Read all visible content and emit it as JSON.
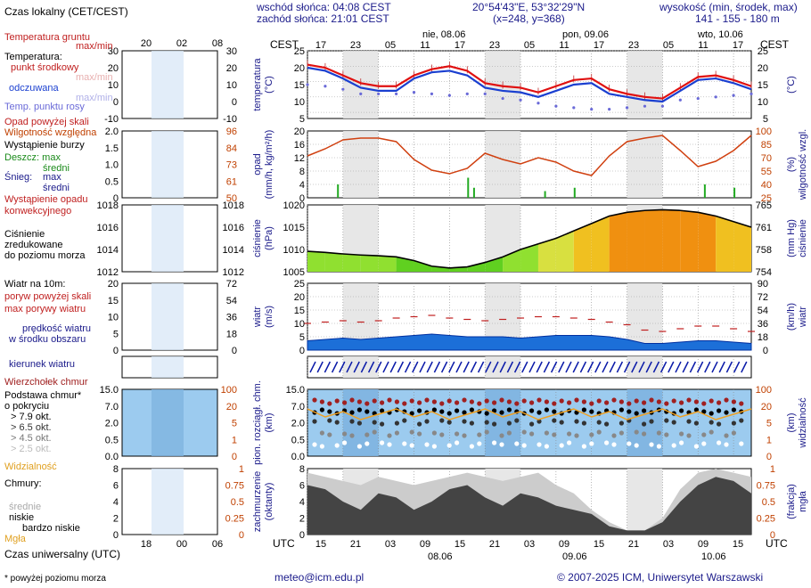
{
  "header": {
    "sunrise": "wschód słońca: 04:08 CEST",
    "sunset": "zachód słońca: 21:01 CEST",
    "coords": "20°54'43\"E, 53°32'29\"N",
    "grid": "(x=248, y=368)",
    "elev_title": "wysokość (min, środek, max)",
    "elev_values": "141 - 155 - 180 m",
    "local_time": "Czas lokalny (CET/CEST)",
    "cest_left": "CEST",
    "cest_right": "CEST",
    "utc_left": "UTC",
    "utc_right": "UTC",
    "utc_axis": "Czas uniwersalny (UTC)",
    "footnote": "* powyżej poziomu morza",
    "email": "meteo@icm.edu.pl",
    "copyright": "© 2007-2025 ICM, Uniwersytet Warszawski"
  },
  "time_axis": {
    "local_hours": [
      "17",
      "23",
      "05",
      "11",
      "17",
      "23",
      "05",
      "11",
      "17",
      "23",
      "05",
      "11",
      "17"
    ],
    "utc_hours": [
      "15",
      "21",
      "03",
      "09",
      "15",
      "21",
      "03",
      "09",
      "15",
      "21",
      "03",
      "09",
      "15"
    ],
    "days_top": [
      "nie, 08.06",
      "pon, 09.06",
      "wto, 10.06"
    ],
    "days_bottom": [
      "08.06",
      "09.06",
      "10.06"
    ],
    "legend_top": [
      "20",
      "02",
      "08"
    ],
    "legend_bottom": [
      "18",
      "00",
      "06"
    ]
  },
  "legend": {
    "ground_temp": "Temperatura gruntu",
    "ground_temp_sub": "max/min",
    "temp_title": "Temperatura:",
    "temp_mid": "punkt środkowy",
    "temp_maxmin": "max/min",
    "temp_felt": "odczuwana",
    "temp_felt_maxmin": "max/min",
    "dew": "Temp. punktu rosy",
    "precip_above": "Opad powyżej skali",
    "humidity": "Wilgotność względna",
    "storm": "Wystąpienie burzy",
    "rain": "Deszcz: max",
    "rain_mid": "średni",
    "snow": "Śnieg:",
    "snow_max": "max",
    "snow_mid": "średni",
    "conv1": "Wystąpienie opadu",
    "conv2": "konwekcyjnego",
    "press1": "Ciśnienie",
    "press2": "zredukowane",
    "press3": "do poziomu morza",
    "wind_title": "Wiatr na 10m:",
    "gust_above": "poryw powyżej skali",
    "gust_max": "max porywy wiatru",
    "wind_avg1": "prędkość wiatru",
    "wind_avg2": "w środku obszaru",
    "wind_dir": "kierunek wiatru",
    "cloud_top": "Wierzchołek chmur",
    "cloud_base1": "Podstawa chmur*",
    "cloud_base2": "o pokryciu",
    "okt": [
      "> 7.9 okt.",
      "> 6.5 okt.",
      "> 4.5 okt.",
      "> 2.5 okt.",
      "> 0.1 okt."
    ],
    "visibility": "Widzialność",
    "clouds": "Chmury:",
    "cl_high": "wysokie",
    "cl_mid": "średnie",
    "cl_low": "niskie",
    "cl_vlow": "bardzo niskie",
    "fog": "Mgła"
  },
  "axes": {
    "temp_left": "temperatura",
    "temp_left_u": "(°C)",
    "temp_right": "(°C)",
    "temp_ticks": [
      25,
      20,
      15,
      10,
      5
    ],
    "leg_temp_ticks": [
      30,
      20,
      10,
      0,
      -10
    ],
    "precip_left": "opad",
    "precip_left_u": "(mm/h, kg/m²/h)",
    "precip_right": "wilgotność wzgl.",
    "precip_right_u": "(%)",
    "precip_ticks": [
      20,
      16,
      12,
      8,
      4,
      0
    ],
    "hum_ticks": [
      100,
      85,
      70,
      55,
      40,
      25
    ],
    "leg_precip_ticks": [
      "2.0",
      "1.5",
      "1.0",
      "0.5",
      "0"
    ],
    "leg_hum_ticks": [
      96,
      84,
      73,
      61,
      50
    ],
    "press_left": "ciśnienie",
    "press_left_u": "(hPa)",
    "press_right": "ciśnienie",
    "press_right_u": "(mm Hg)",
    "press_ticks": [
      1020,
      1015,
      1010,
      1005
    ],
    "pressmm_ticks": [
      765,
      761,
      758,
      754
    ],
    "leg_press_ticks": [
      1018,
      1016,
      1014,
      1012
    ],
    "wind_left": "wiatr",
    "wind_left_u": "(m/s)",
    "wind_right": "wiatr",
    "wind_right_u": "(km/h)",
    "wind_ticks": [
      25,
      20,
      15,
      10,
      5,
      0
    ],
    "windkm_ticks": [
      90,
      72,
      54,
      36,
      18,
      0
    ],
    "leg_wind_ticks": [
      20,
      15,
      10,
      5,
      0
    ],
    "leg_windkm_ticks": [
      72,
      54,
      36,
      18,
      0
    ],
    "cloud_left": "pion. rozciągł. chm.",
    "cloud_left_u": "(km)",
    "cloud_right": "widzialność",
    "cloud_right_u": "(km)",
    "cloud_ticks": [
      "15.0",
      "7.0",
      "2.0",
      "0.5",
      "0.0"
    ],
    "vis_ticks": [
      100,
      20,
      5,
      1,
      0
    ],
    "cover_left": "zachmurzenie",
    "cover_left_u": "(oktanty)",
    "cover_right": "mgła",
    "cover_right_u": "(frakcja)",
    "cover_ticks": [
      8,
      6,
      4,
      2,
      0
    ],
    "fog_ticks": [
      "1",
      "0.75",
      "0.5",
      "0.25",
      "0"
    ]
  },
  "chart_data": [
    {
      "type": "line",
      "title": "temperatura",
      "ylabel": "(°C)",
      "ylim": [
        3,
        25
      ],
      "x_hours": [
        0,
        3,
        6,
        9,
        12,
        15,
        18,
        21,
        24,
        27,
        30,
        33,
        36,
        39,
        42,
        45,
        48,
        51,
        54,
        57,
        60,
        63,
        66,
        69,
        72,
        75
      ],
      "series": [
        {
          "name": "punkt środkowy",
          "values": [
            20.5,
            19.5,
            17.0,
            14.5,
            13.5,
            13.5,
            17.0,
            19.0,
            20.0,
            18.5,
            14.5,
            13.5,
            13.0,
            11.5,
            13.5,
            15.5,
            16.0,
            12.5,
            11.0,
            10.0,
            9.5,
            13.0,
            16.5,
            17.0,
            15.5,
            13.5
          ]
        },
        {
          "name": "odczuwana",
          "values": [
            19.5,
            18.5,
            16.0,
            13.0,
            12.0,
            12.0,
            16.0,
            18.0,
            18.5,
            17.0,
            13.0,
            12.0,
            11.5,
            10.0,
            12.0,
            14.0,
            14.5,
            11.0,
            10.0,
            9.0,
            8.5,
            12.0,
            15.5,
            16.0,
            14.5,
            12.5
          ]
        },
        {
          "name": "Temp. punktu rosy",
          "values": [
            14.0,
            13.5,
            12.5,
            11.0,
            11.0,
            11.0,
            11.5,
            11.0,
            10.5,
            11.0,
            11.0,
            9.5,
            9.0,
            8.0,
            7.0,
            6.5,
            6.0,
            6.0,
            6.5,
            7.0,
            7.0,
            9.0,
            9.5,
            10.0,
            10.5,
            11.0
          ]
        }
      ]
    },
    {
      "type": "line",
      "title": "wilgotność wzgl.",
      "ylabel": "(%)",
      "ylim": [
        25,
        100
      ],
      "x_hours": [
        0,
        3,
        6,
        9,
        12,
        15,
        18,
        21,
        24,
        27,
        30,
        33,
        36,
        39,
        42,
        45,
        48,
        51,
        54,
        57,
        60,
        63,
        66,
        69,
        72,
        75
      ],
      "series": [
        {
          "name": "Wilgotność względna",
          "values": [
            72,
            80,
            90,
            92,
            92,
            88,
            68,
            56,
            52,
            58,
            75,
            68,
            63,
            70,
            65,
            55,
            50,
            72,
            88,
            92,
            95,
            78,
            60,
            66,
            78,
            95
          ]
        }
      ]
    },
    {
      "type": "area",
      "title": "ciśnienie",
      "ylabel": "(hPa)",
      "ylim": [
        1005,
        1023
      ],
      "x_hours": [
        0,
        3,
        6,
        9,
        12,
        15,
        18,
        21,
        24,
        27,
        30,
        33,
        36,
        39,
        42,
        45,
        48,
        51,
        54,
        57,
        60,
        63,
        66,
        69,
        72,
        75
      ],
      "series": [
        {
          "name": "Ciśnienie",
          "values": [
            1010.5,
            1010.2,
            1009.8,
            1009.5,
            1009.3,
            1009.0,
            1008.0,
            1006.5,
            1006.0,
            1006.3,
            1007.5,
            1009.0,
            1011.0,
            1012.5,
            1014.0,
            1016.0,
            1018.0,
            1020.0,
            1021.0,
            1021.5,
            1021.7,
            1021.5,
            1021.0,
            1020.0,
            1018.5,
            1017.0
          ]
        }
      ]
    },
    {
      "type": "area",
      "title": "wiatr",
      "ylabel": "(m/s)",
      "ylim": [
        0,
        25
      ],
      "x_hours": [
        0,
        3,
        6,
        9,
        12,
        15,
        18,
        21,
        24,
        27,
        30,
        33,
        36,
        39,
        42,
        45,
        48,
        51,
        54,
        57,
        60,
        63,
        66,
        69,
        72,
        75
      ],
      "series": [
        {
          "name": "prędkość wiatru",
          "values": [
            3.5,
            4.0,
            4.5,
            4.0,
            4.5,
            5.0,
            5.5,
            6.0,
            5.5,
            5.0,
            5.0,
            5.0,
            4.5,
            5.0,
            5.5,
            5.5,
            5.5,
            5.0,
            4.0,
            2.5,
            2.5,
            3.0,
            3.5,
            3.5,
            3.0,
            2.5
          ]
        },
        {
          "name": "max porywy wiatru",
          "values": [
            10.0,
            10.5,
            11.0,
            10.5,
            11.0,
            12.0,
            12.5,
            13.0,
            12.0,
            11.5,
            11.0,
            11.5,
            12.0,
            12.5,
            12.5,
            12.0,
            11.5,
            10.5,
            9.5,
            7.5,
            7.0,
            8.0,
            9.0,
            9.0,
            8.0,
            7.0
          ]
        }
      ]
    },
    {
      "type": "area",
      "title": "zachmurzenie",
      "ylabel": "(oktanty)",
      "ylim": [
        0,
        8
      ],
      "x_hours": [
        0,
        3,
        6,
        9,
        12,
        15,
        18,
        21,
        24,
        27,
        30,
        33,
        36,
        39,
        42,
        45,
        48,
        51,
        54,
        57,
        60,
        63,
        66,
        69,
        72,
        75
      ],
      "series": [
        {
          "name": "niskie",
          "values": [
            6.0,
            5.5,
            4.0,
            3.0,
            5.0,
            4.5,
            3.0,
            4.0,
            5.5,
            6.0,
            4.5,
            3.5,
            5.0,
            4.5,
            3.5,
            3.0,
            2.5,
            1.0,
            0.5,
            0.5,
            1.5,
            4.0,
            6.0,
            7.0,
            6.5,
            5.0
          ]
        },
        {
          "name": "wysokie",
          "values": [
            7.5,
            7.0,
            6.5,
            6.0,
            7.0,
            6.5,
            6.0,
            6.5,
            7.0,
            7.5,
            7.0,
            6.5,
            7.0,
            7.5,
            6.0,
            5.0,
            3.0,
            1.5,
            0.5,
            0.5,
            2.0,
            5.5,
            7.5,
            8.0,
            7.5,
            7.0
          ]
        }
      ]
    }
  ]
}
